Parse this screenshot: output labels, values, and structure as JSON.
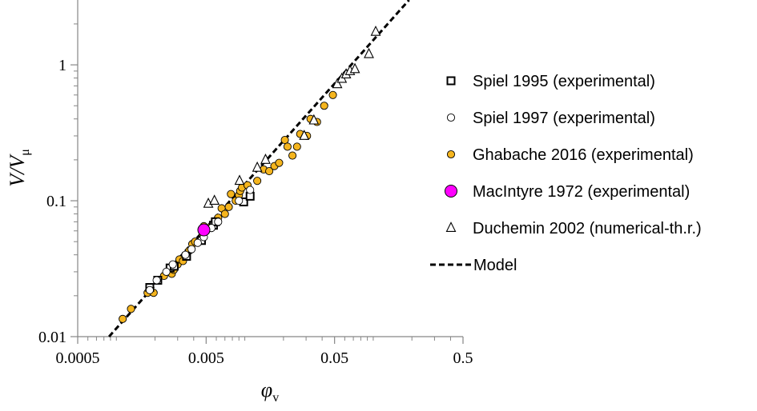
{
  "chart_data": {
    "type": "scatter",
    "xscale": "log",
    "yscale": "log",
    "xlim": [
      0.0005,
      0.5
    ],
    "ylim": [
      0.01,
      3.0
    ],
    "grid": false,
    "legend_position": "right",
    "xlabel": {
      "main": "φ",
      "sub": "v"
    },
    "ylabel": {
      "main": "V/V",
      "sub": "μ"
    },
    "x_ticks": [
      {
        "value": 0.0005,
        "label": "0.0005"
      },
      {
        "value": 0.005,
        "label": "0.005"
      },
      {
        "value": 0.05,
        "label": "0.05"
      },
      {
        "value": 0.5,
        "label": "0.5"
      }
    ],
    "y_ticks": [
      {
        "value": 0.01,
        "label": "0.01"
      },
      {
        "value": 0.1,
        "label": "0.1"
      },
      {
        "value": 1,
        "label": "1"
      }
    ],
    "series": [
      {
        "name": "Spiel 1995 (experimental)",
        "marker": "square",
        "fill": "#ffffff",
        "stroke": "#000000",
        "points": [
          [
            0.00182,
            0.023
          ],
          [
            0.0021,
            0.026
          ],
          [
            0.00262,
            0.032
          ],
          [
            0.00282,
            0.033
          ],
          [
            0.00352,
            0.039
          ],
          [
            0.0046,
            0.051
          ],
          [
            0.0057,
            0.066
          ],
          [
            0.0059,
            0.07
          ],
          [
            0.0098,
            0.098
          ],
          [
            0.011,
            0.108
          ]
        ]
      },
      {
        "name": "Spiel 1997 (experimental)",
        "marker": "circle",
        "fill": "#ffffff",
        "stroke": "#000000",
        "points": [
          [
            0.00182,
            0.022
          ],
          [
            0.00206,
            0.026
          ],
          [
            0.00245,
            0.03
          ],
          [
            0.00275,
            0.034
          ],
          [
            0.00345,
            0.04
          ],
          [
            0.00385,
            0.044
          ],
          [
            0.0043,
            0.049
          ],
          [
            0.0048,
            0.054
          ],
          [
            0.0055,
            0.063
          ],
          [
            0.0062,
            0.07
          ],
          [
            0.009,
            0.1
          ],
          [
            0.011,
            0.12
          ]
        ]
      },
      {
        "name": "Ghabache 2016 (experimental)",
        "marker": "circle",
        "fill": "#F5B51E",
        "stroke": "#000000",
        "points": [
          [
            0.00112,
            0.0135
          ],
          [
            0.0013,
            0.016
          ],
          [
            0.00175,
            0.021
          ],
          [
            0.00195,
            0.021
          ],
          [
            0.00235,
            0.028
          ],
          [
            0.0027,
            0.029
          ],
          [
            0.0028,
            0.031
          ],
          [
            0.003,
            0.034
          ],
          [
            0.0031,
            0.037
          ],
          [
            0.0033,
            0.036
          ],
          [
            0.0037,
            0.043
          ],
          [
            0.0039,
            0.048
          ],
          [
            0.0041,
            0.05
          ],
          [
            0.0044,
            0.05
          ],
          [
            0.0047,
            0.057
          ],
          [
            0.0048,
            0.065
          ],
          [
            0.005,
            0.06
          ],
          [
            0.0055,
            0.065
          ],
          [
            0.006,
            0.07
          ],
          [
            0.0062,
            0.075
          ],
          [
            0.0066,
            0.088
          ],
          [
            0.007,
            0.08
          ],
          [
            0.0075,
            0.09
          ],
          [
            0.0078,
            0.112
          ],
          [
            0.0085,
            0.1
          ],
          [
            0.009,
            0.11
          ],
          [
            0.0092,
            0.118
          ],
          [
            0.0095,
            0.125
          ],
          [
            0.0105,
            0.13
          ],
          [
            0.0125,
            0.14
          ],
          [
            0.014,
            0.17
          ],
          [
            0.0155,
            0.165
          ],
          [
            0.017,
            0.18
          ],
          [
            0.0185,
            0.19
          ],
          [
            0.0205,
            0.28
          ],
          [
            0.0215,
            0.25
          ],
          [
            0.0235,
            0.215
          ],
          [
            0.0255,
            0.25
          ],
          [
            0.027,
            0.31
          ],
          [
            0.0305,
            0.3
          ],
          [
            0.0325,
            0.4
          ],
          [
            0.0365,
            0.38
          ],
          [
            0.0415,
            0.5
          ],
          [
            0.0485,
            0.6
          ]
        ]
      },
      {
        "name": "MacIntyre 1972 (experimental)",
        "marker": "big-circle",
        "fill": "#FF00FF",
        "stroke": "#000000",
        "points": [
          [
            0.0048,
            0.061
          ]
        ]
      },
      {
        "name": "Duchemin 2002 (numerical-th.r.)",
        "marker": "triangle",
        "fill": "#ffffff",
        "stroke": "#000000",
        "points": [
          [
            0.0052,
            0.095
          ],
          [
            0.0058,
            0.1
          ],
          [
            0.0091,
            0.14
          ],
          [
            0.0125,
            0.175
          ],
          [
            0.0145,
            0.2
          ],
          [
            0.029,
            0.3
          ],
          [
            0.0345,
            0.39
          ],
          [
            0.0525,
            0.72
          ],
          [
            0.057,
            0.79
          ],
          [
            0.0615,
            0.85
          ],
          [
            0.066,
            0.9
          ],
          [
            0.072,
            0.93
          ],
          [
            0.0925,
            1.2
          ],
          [
            0.1045,
            1.75
          ]
        ]
      },
      {
        "name": "Model",
        "marker": "dashed-line",
        "stroke": "#000000",
        "line": [
          [
            0.000877,
            0.01
          ],
          [
            0.19,
            3.0
          ]
        ]
      }
    ]
  }
}
